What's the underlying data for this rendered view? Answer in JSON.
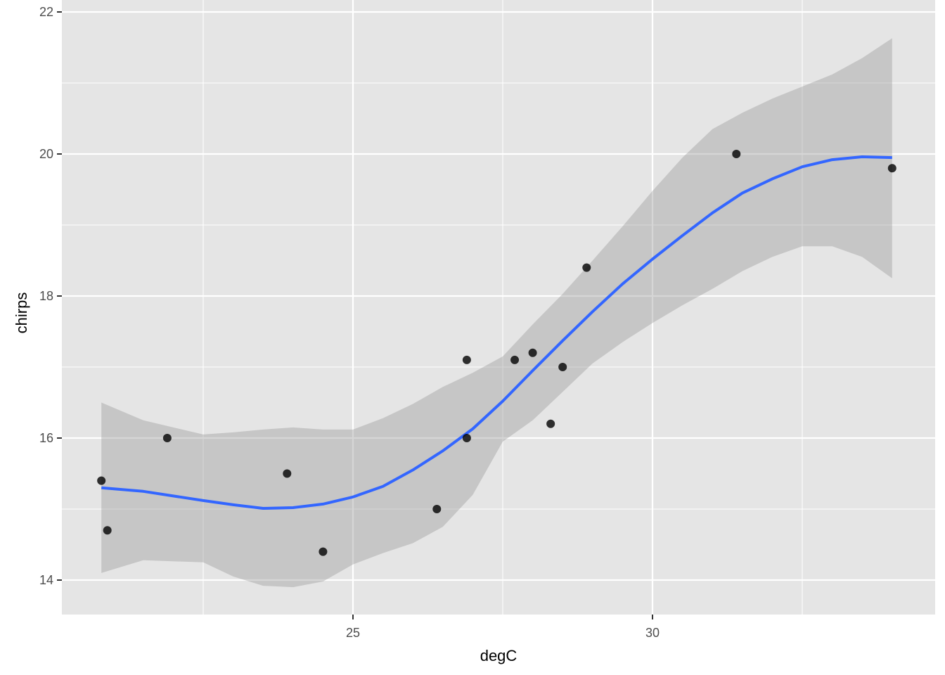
{
  "chart_data": {
    "type": "scatter",
    "title": "",
    "xlabel": "degC",
    "ylabel": "chirps",
    "xlim": [
      20.6,
      34.4
    ],
    "ylim": [
      13.8,
      22.0
    ],
    "x_ticks": [
      25,
      30
    ],
    "x_tick_labels": [
      "25",
      "30"
    ],
    "x_minor_ticks": [
      22.5,
      27.5,
      32.5
    ],
    "y_ticks": [
      14,
      16,
      18,
      20,
      22
    ],
    "y_tick_labels": [
      "14",
      "16",
      "18",
      "20",
      "22"
    ],
    "y_minor_ticks": [
      15,
      17,
      19,
      21
    ],
    "grid": true,
    "legend": "none",
    "colors": {
      "panel": "#e5e5e5",
      "grid": "#ffffff",
      "points": "#000000",
      "smooth_line": "#3366ff",
      "confidence_band": "#999999"
    },
    "points": [
      {
        "x": 20.8,
        "y": 15.4
      },
      {
        "x": 20.9,
        "y": 14.7
      },
      {
        "x": 21.9,
        "y": 16.0
      },
      {
        "x": 23.9,
        "y": 15.5
      },
      {
        "x": 24.5,
        "y": 14.4
      },
      {
        "x": 26.4,
        "y": 15.0
      },
      {
        "x": 26.9,
        "y": 16.0
      },
      {
        "x": 26.9,
        "y": 17.1
      },
      {
        "x": 27.7,
        "y": 17.1
      },
      {
        "x": 28.0,
        "y": 17.2
      },
      {
        "x": 28.3,
        "y": 16.2
      },
      {
        "x": 28.5,
        "y": 17.0
      },
      {
        "x": 28.9,
        "y": 18.4
      },
      {
        "x": 31.4,
        "y": 20.0
      },
      {
        "x": 34.0,
        "y": 19.8
      }
    ],
    "smooth": {
      "x": [
        20.8,
        21.5,
        22.5,
        23.0,
        23.5,
        24.0,
        24.5,
        25.0,
        25.5,
        26.0,
        26.5,
        27.0,
        27.5,
        28.0,
        28.5,
        29.0,
        29.5,
        30.0,
        30.5,
        31.0,
        31.5,
        32.0,
        32.5,
        33.0,
        33.5,
        34.0
      ],
      "y": [
        15.3,
        15.25,
        15.12,
        15.06,
        15.01,
        15.02,
        15.07,
        15.17,
        15.32,
        15.55,
        15.82,
        16.13,
        16.52,
        16.95,
        17.37,
        17.78,
        18.17,
        18.52,
        18.85,
        19.17,
        19.45,
        19.65,
        19.82,
        19.92,
        19.96,
        19.95
      ],
      "upper": [
        16.5,
        16.25,
        16.05,
        16.08,
        16.12,
        16.15,
        16.12,
        16.12,
        16.28,
        16.48,
        16.72,
        16.92,
        17.15,
        17.6,
        18.03,
        18.5,
        18.98,
        19.48,
        19.95,
        20.35,
        20.58,
        20.78,
        20.95,
        21.12,
        21.35,
        21.63
      ],
      "lower": [
        14.1,
        14.28,
        14.25,
        14.05,
        13.92,
        13.9,
        13.98,
        14.22,
        14.38,
        14.52,
        14.75,
        15.2,
        15.95,
        16.25,
        16.65,
        17.05,
        17.35,
        17.62,
        17.87,
        18.1,
        18.35,
        18.55,
        18.7,
        18.7,
        18.55,
        18.25
      ]
    }
  }
}
